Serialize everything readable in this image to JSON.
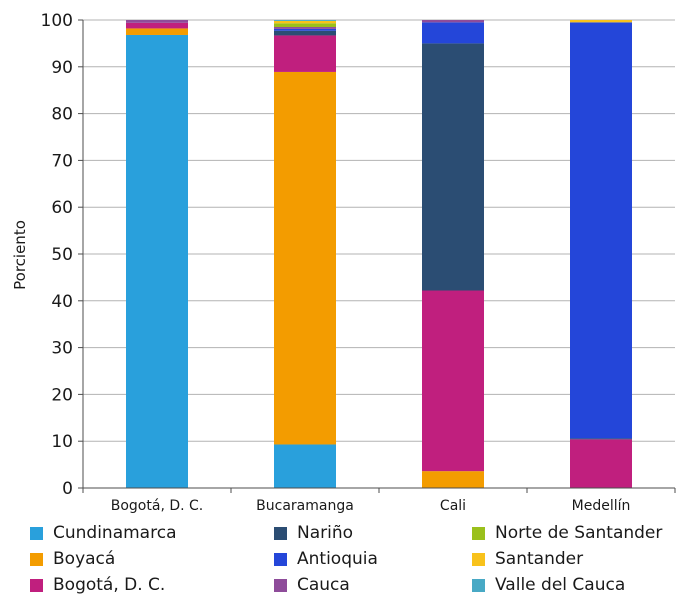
{
  "chart_data": {
    "type": "bar",
    "stacked": true,
    "ylabel": "Porciento",
    "xlabel": "",
    "ylim": [
      0,
      100
    ],
    "yticks": [
      "0",
      "10",
      "20",
      "30",
      "40",
      "50",
      "60",
      "70",
      "80",
      "90",
      "100"
    ],
    "grid": true,
    "legend_position": "bottom",
    "categories": [
      "Bogotá, D. C.",
      "Bucaramanga",
      "Cali",
      "Medellín"
    ],
    "series": [
      {
        "name": "Cundinamarca",
        "color": "#29a0dc",
        "values": [
          96.8,
          9.3,
          0,
          0
        ]
      },
      {
        "name": "Boyacá",
        "color": "#f39c00",
        "values": [
          1.4,
          79.6,
          3.6,
          0
        ]
      },
      {
        "name": "Bogotá, D. C.",
        "color": "#c01f7e",
        "values": [
          1.2,
          7.8,
          38.6,
          10.4
        ]
      },
      {
        "name": "Nariño",
        "color": "#2b4d73",
        "values": [
          0,
          1.0,
          52.8,
          0.2
        ]
      },
      {
        "name": "Antioquia",
        "color": "#2446d9",
        "values": [
          0,
          0.4,
          4.5,
          88.9
        ]
      },
      {
        "name": "Cauca",
        "color": "#8e4c9a",
        "values": [
          0.6,
          0.4,
          0.5,
          0
        ]
      },
      {
        "name": "Norte de Santander",
        "color": "#9ac01c",
        "values": [
          0,
          0.8,
          0,
          0
        ]
      },
      {
        "name": "Santander",
        "color": "#f8c21b",
        "values": [
          0,
          0.5,
          0,
          0.5
        ]
      },
      {
        "name": "Valle del Cauca",
        "color": "#48a9c5",
        "values": [
          0,
          0.2,
          0,
          0
        ]
      }
    ],
    "legend_order": [
      "Cundinamarca",
      "Nariño",
      "Norte de Santander",
      "Boyacá",
      "Antioquia",
      "Santander",
      "Bogotá, D. C.",
      "Cauca",
      "Valle del Cauca"
    ]
  }
}
